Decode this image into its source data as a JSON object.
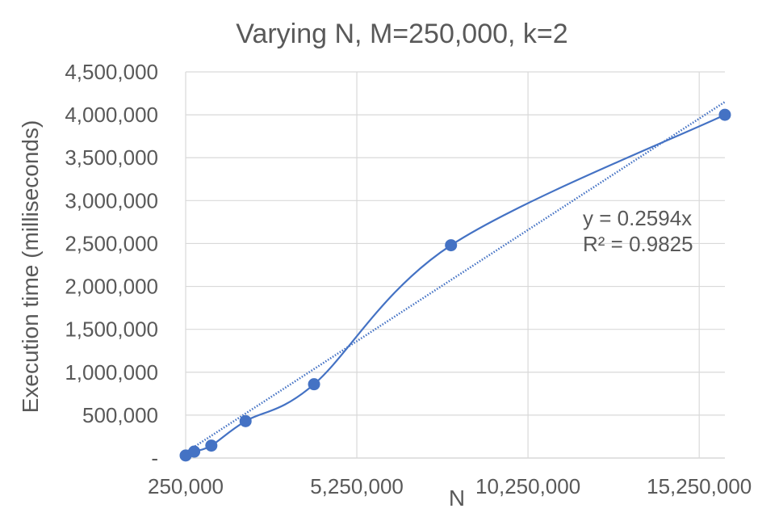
{
  "chart_data": {
    "type": "scatter",
    "title": "Varying N, M=250,000, k=2",
    "xlabel": "N",
    "ylabel": "Execution time (milliseconds)",
    "xlim": [
      250000,
      16000000
    ],
    "ylim": [
      0,
      4500000
    ],
    "x_ticks": [
      250000,
      5250000,
      10250000,
      15250000
    ],
    "x_tick_labels": [
      "250,000",
      "5,250,000",
      "10,250,000",
      "15,250,000"
    ],
    "y_ticks": [
      0,
      500000,
      1000000,
      1500000,
      2000000,
      2500000,
      3000000,
      3500000,
      4000000,
      4500000
    ],
    "y_tick_labels": [
      "-",
      "500,000",
      "1,000,000",
      "1,500,000",
      "2,000,000",
      "2,500,000",
      "3,000,000",
      "3,500,000",
      "4,000,000",
      "4,500,000"
    ],
    "grid": true,
    "series": [
      {
        "x": [
          250000,
          500000,
          1000000,
          2000000,
          4000000,
          8000000,
          16000000
        ],
        "y": [
          30000,
          75000,
          145000,
          430000,
          860000,
          2480000,
          4000000
        ],
        "color": "#4472C4",
        "smooth": true
      }
    ],
    "trendline": {
      "type": "linear",
      "slope": 0.2594,
      "intercept": 0,
      "color": "#4472C4",
      "style": "dotted",
      "equation": "y = 0.2594x",
      "r_squared": "R² = 0.9825"
    }
  }
}
